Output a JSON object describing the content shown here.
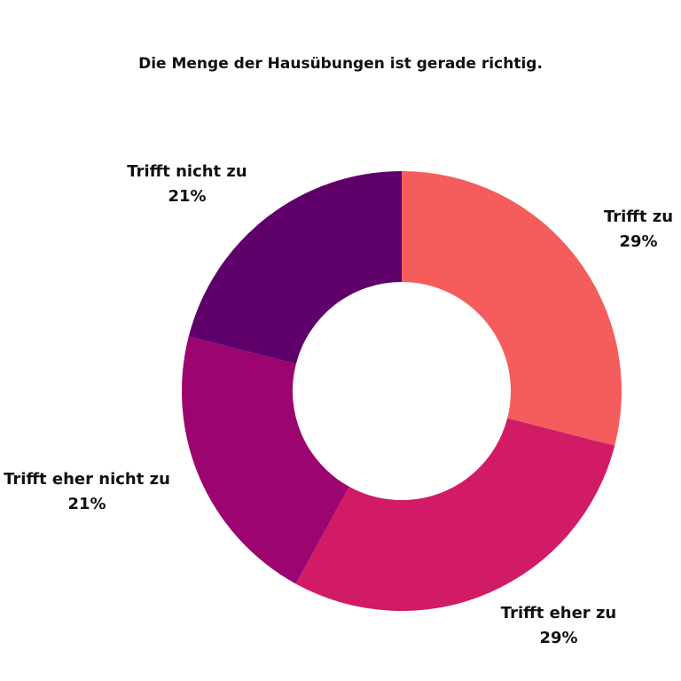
{
  "chart_data": {
    "type": "pie",
    "title": "Die Menge der Hausübungen ist gerade richtig.",
    "donut": true,
    "start_angle_deg": 0,
    "direction": "clockwise",
    "slices": [
      {
        "label": "Trifft zu",
        "value": 29,
        "value_label": "29%",
        "color": "#f55c5c"
      },
      {
        "label": "Trifft eher zu",
        "value": 29,
        "value_label": "29%",
        "color": "#d11b66"
      },
      {
        "label": "Trifft eher nicht zu",
        "value": 21,
        "value_label": "21%",
        "color": "#9c0470"
      },
      {
        "label": "Trifft nicht zu",
        "value": 21,
        "value_label": "21%",
        "color": "#5f006a"
      }
    ]
  }
}
